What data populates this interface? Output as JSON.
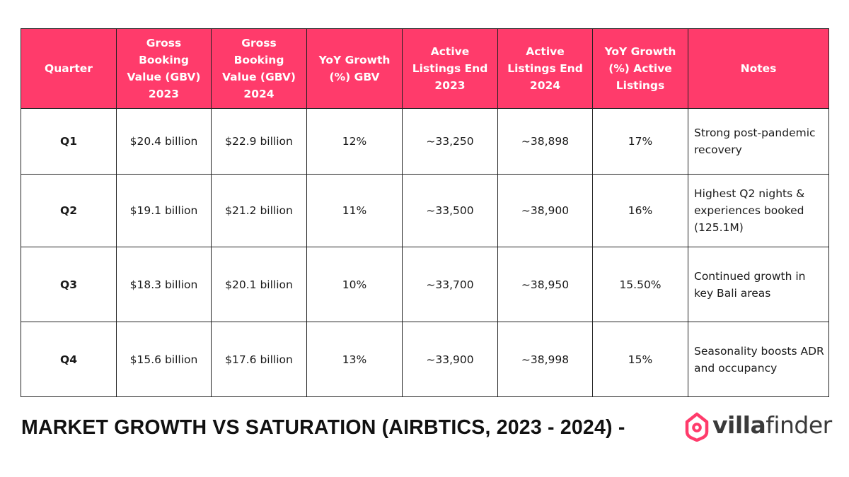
{
  "table": {
    "headers": [
      "Quarter",
      "Gross Booking Value (GBV) 2023",
      "Gross Booking Value (GBV) 2024",
      "YoY Growth (%) GBV",
      "Active Listings End 2023",
      "Active Listings End 2024",
      "YoY Growth (%) Active Listings",
      "Notes"
    ],
    "rows": [
      [
        "Q1",
        "$20.4 billion",
        "$22.9 billion",
        "12%",
        "~33,250",
        "~38,898",
        "17%",
        "Strong post-pandemic recovery"
      ],
      [
        "Q2",
        "$19.1 billion",
        "$21.2 billion",
        "11%",
        "~33,500",
        "~38,900",
        "16%",
        "Highest Q2 nights & experiences booked (125.1M)"
      ],
      [
        "Q3",
        "$18.3 billion",
        "$20.1 billion",
        "10%",
        "~33,700",
        "~38,950",
        "15.50%",
        "Continued growth in key Bali areas"
      ],
      [
        "Q4",
        "$15.6 billion",
        "$17.6 billion",
        "13%",
        "~33,900",
        "~38,998",
        "15%",
        "Seasonality boosts ADR and occupancy"
      ]
    ]
  },
  "footer": {
    "title": "MARKET GROWTH VS SATURATION (AIRBTICS, 2023 - 2024) -"
  },
  "logo": {
    "brand_part1": "villa",
    "brand_part2": "finder",
    "icon": "house-pin-icon",
    "accent_color": "#ff3b6b"
  },
  "colors": {
    "header_background": "#ff3b6b",
    "header_text": "#ffffff",
    "border": "#222222"
  }
}
